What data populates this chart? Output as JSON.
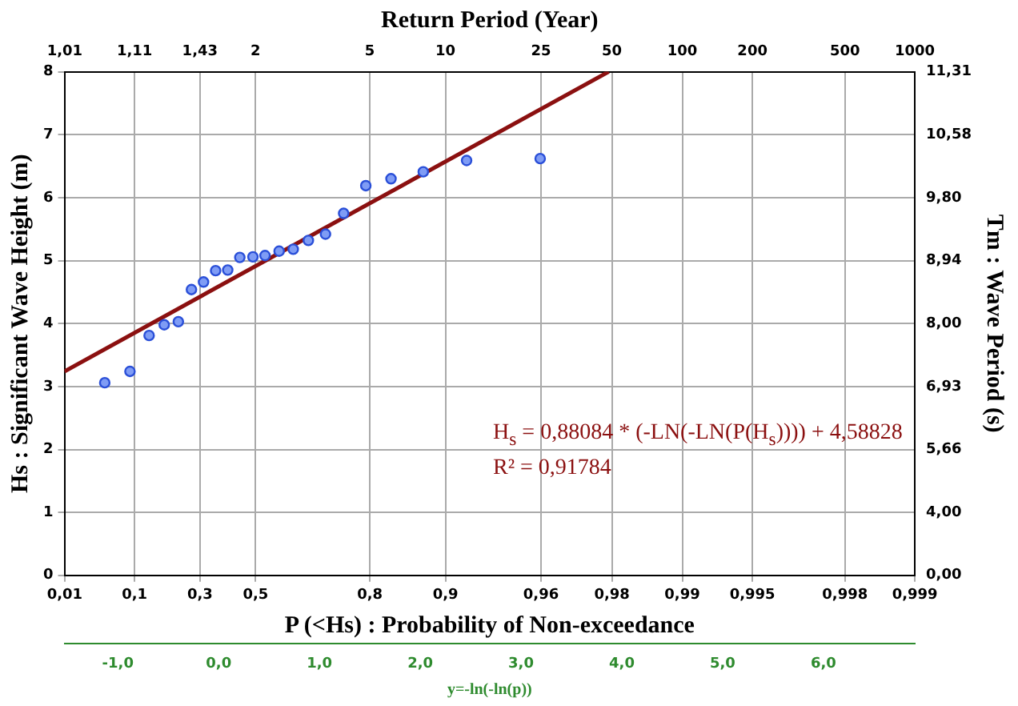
{
  "chart_data": {
    "type": "scatter",
    "xlabel": "y=-ln(-ln(p))",
    "ylabel": "Hs : Significant Wave Height (m)",
    "y2label": "Tm : Wave Period (s)",
    "x2label": "Return Period (Year)",
    "xlim": [
      -1.53,
      6.907
    ],
    "xticks": [
      {
        "value": -1,
        "label": "-1,0"
      },
      {
        "value": 0,
        "label": "0,0"
      },
      {
        "value": 1,
        "label": "1,0"
      },
      {
        "value": 2,
        "label": "2,0"
      },
      {
        "value": 3,
        "label": "3,0"
      },
      {
        "value": 4,
        "label": "4,0"
      },
      {
        "value": 5,
        "label": "5,0"
      },
      {
        "value": 6,
        "label": "6,0"
      }
    ],
    "ylim": [
      0,
      8
    ],
    "yticks": [
      0,
      1,
      2,
      3,
      4,
      5,
      6,
      7,
      8
    ],
    "grid": true,
    "annotations": [
      "P (<Hs) : Probability of Non-exceedance",
      "H$_{s}$ = 0,88084 * (-LN(-LN(P(H$_{s}$)))) + 4,58828",
      "R² = 0,91784",
      "0,01",
      "0,1",
      "0,3",
      "0,5",
      "0,8",
      "0,9",
      "0,96",
      "0,98",
      "0,99",
      "0,995",
      "0,998",
      "0,999",
      "1,01",
      "1,11",
      "1,43",
      "2",
      "5",
      "10",
      "25",
      "50",
      "100",
      "200",
      "500",
      "1000",
      "0,00",
      "4,00",
      "5,66",
      "6,93",
      "8,00",
      "8,94",
      "9,80",
      "10,58",
      "11,31"
    ],
    "series": [
      {
        "color": "#7f9cf5",
        "marker": "circle",
        "x": [
          -1.13,
          -0.88,
          -0.69,
          -0.54,
          -0.4,
          -0.27,
          -0.15,
          -0.03,
          0.09,
          0.21,
          0.34,
          0.46,
          0.6,
          0.74,
          0.89,
          1.06,
          1.24,
          1.46,
          1.71,
          2.03,
          2.46,
          3.19
        ],
        "values": [
          3.06,
          3.24,
          3.81,
          3.98,
          4.03,
          4.54,
          4.66,
          4.84,
          4.85,
          5.05,
          5.06,
          5.08,
          5.15,
          5.18,
          5.32,
          5.42,
          5.75,
          6.19,
          6.3,
          6.41,
          6.59,
          6.62
        ]
      },
      {
        "type": "line",
        "marker": "none",
        "color": "#8b1010",
        "x": [
          -1.53,
          3.87
        ],
        "values": [
          3.24,
          8
        ]
      }
    ]
  }
}
